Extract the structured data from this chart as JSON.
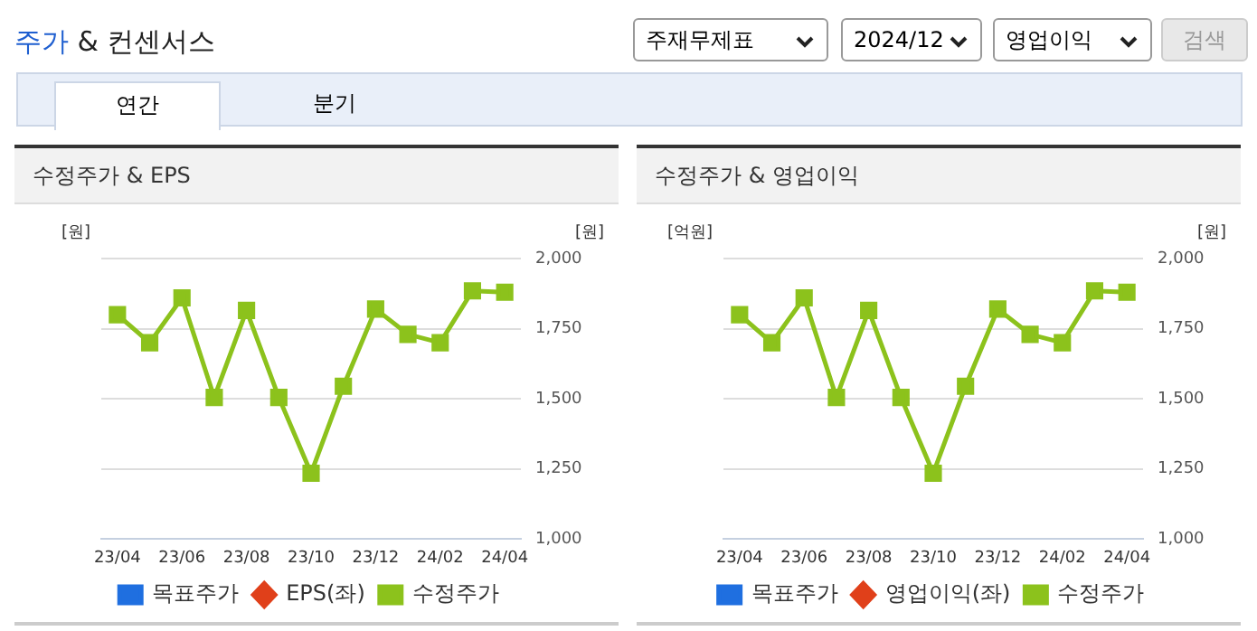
{
  "chart_data": [
    {
      "type": "other",
      "title": "주가 & 컨센서스",
      "annotations": [
        "주재무제표",
        "2024/12",
        "영업이익",
        "검색",
        "연간",
        "분기"
      ]
    },
    {
      "type": "line",
      "title": "수정주가 & EPS",
      "ylabel": "[원]",
      "y2label": "[원]",
      "categories": [
        "23/04",
        null,
        "23/06",
        null,
        "23/08",
        null,
        "23/10",
        null,
        "23/12",
        null,
        "24/02",
        null,
        "24/04"
      ],
      "series": [
        {
          "name": "목표주가",
          "color": "#1f6fe0",
          "marker": "square",
          "axis": "y2",
          "values": [
            null,
            null,
            null,
            null,
            null,
            null,
            null,
            null,
            null,
            null,
            null,
            null,
            null
          ]
        },
        {
          "name": "EPS(좌)",
          "color": "#e0401a",
          "marker": "diamond",
          "axis": "y",
          "values": [
            null,
            null,
            null,
            null,
            null,
            null,
            null,
            null,
            null,
            null,
            null,
            null,
            null
          ]
        },
        {
          "name": "수정주가",
          "color": "#8cc21c",
          "marker": "square",
          "axis": "y2",
          "values": [
            1800,
            1700,
            1860,
            1505,
            1815,
            1505,
            1235,
            1545,
            1820,
            1730,
            1700,
            1885,
            1880
          ]
        }
      ],
      "y2lim": [
        1000,
        2000
      ],
      "y2ticks": [
        {
          "value": 1000,
          "label": "1,000"
        },
        {
          "value": 1250,
          "label": "1,250"
        },
        {
          "value": 1500,
          "label": "1,500"
        },
        {
          "value": 1750,
          "label": "1,750"
        },
        {
          "value": 2000,
          "label": "2,000"
        }
      ],
      "grid": "y",
      "legend": "bottom",
      "tick_labels": [
        "x",
        "y2"
      ]
    },
    {
      "type": "line",
      "title": "수정주가 & 영업이익",
      "ylabel": "[억원]",
      "y2label": "[원]",
      "categories": [
        "23/04",
        null,
        "23/06",
        null,
        "23/08",
        null,
        "23/10",
        null,
        "23/12",
        null,
        "24/02",
        null,
        "24/04"
      ],
      "series": [
        {
          "name": "목표주가",
          "color": "#1f6fe0",
          "marker": "square",
          "axis": "y2",
          "values": [
            null,
            null,
            null,
            null,
            null,
            null,
            null,
            null,
            null,
            null,
            null,
            null,
            null
          ]
        },
        {
          "name": "영업이익(좌)",
          "color": "#e0401a",
          "marker": "diamond",
          "axis": "y",
          "values": [
            null,
            null,
            null,
            null,
            null,
            null,
            null,
            null,
            null,
            null,
            null,
            null,
            null
          ]
        },
        {
          "name": "수정주가",
          "color": "#8cc21c",
          "marker": "square",
          "axis": "y2",
          "values": [
            1800,
            1700,
            1860,
            1505,
            1815,
            1505,
            1235,
            1545,
            1820,
            1730,
            1700,
            1885,
            1880
          ]
        }
      ],
      "y2lim": [
        1000,
        2000
      ],
      "y2ticks": [
        {
          "value": 1000,
          "label": "1,000"
        },
        {
          "value": 1250,
          "label": "1,250"
        },
        {
          "value": 1500,
          "label": "1,500"
        },
        {
          "value": 1750,
          "label": "1,750"
        },
        {
          "value": 2000,
          "label": "2,000"
        }
      ],
      "grid": "y",
      "legend": "bottom",
      "tick_labels": [
        "x",
        "y2"
      ]
    }
  ]
}
